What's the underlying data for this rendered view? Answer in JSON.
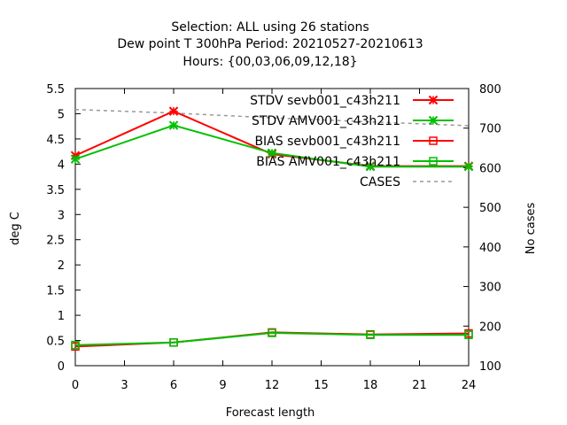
{
  "title_lines": [
    "Selection: ALL using    26 stations",
    "Dew point T 300hPa   Period: 20210527-20210613",
    "Hours: {00,03,06,09,12,18}"
  ],
  "chart_data": {
    "type": "line",
    "xlabel": "Forecast length",
    "ylabel": "deg C",
    "y2label": "No cases",
    "xlim": [
      0,
      24
    ],
    "ylim": [
      0,
      5.5
    ],
    "y2lim": [
      100,
      800
    ],
    "xticks": [
      "0",
      "3",
      "6",
      "9",
      "12",
      "15",
      "18",
      "21",
      "24"
    ],
    "yticks": [
      "0",
      "0.5",
      "1",
      "1.5",
      "2",
      "2.5",
      "3",
      "3.5",
      "4",
      "4.5",
      "5",
      "5.5"
    ],
    "y2ticks": [
      "100",
      "200",
      "300",
      "400",
      "500",
      "600",
      "700",
      "800"
    ],
    "legend_position": "top-right",
    "series": [
      {
        "name": "STDV sevb001_c43h211",
        "axis": "y",
        "color": "#ff0000",
        "marker": "cross",
        "x": [
          0,
          6,
          12,
          18,
          24
        ],
        "y": [
          4.17,
          5.05,
          4.2,
          3.96,
          3.96
        ]
      },
      {
        "name": "STDV AMV001_c43h211",
        "axis": "y",
        "color": "#00c000",
        "marker": "cross",
        "x": [
          0,
          6,
          12,
          18,
          24
        ],
        "y": [
          4.1,
          4.77,
          4.22,
          3.95,
          3.95
        ]
      },
      {
        "name": "BIAS sevb001_c43h211",
        "axis": "y",
        "color": "#ff0000",
        "marker": "square",
        "x": [
          0,
          6,
          12,
          18,
          24
        ],
        "y": [
          0.38,
          0.46,
          0.66,
          0.62,
          0.64
        ]
      },
      {
        "name": "BIAS AMV001_c43h211",
        "axis": "y",
        "color": "#00c000",
        "marker": "square",
        "x": [
          0,
          6,
          12,
          18,
          24
        ],
        "y": [
          0.41,
          0.46,
          0.65,
          0.61,
          0.61
        ]
      },
      {
        "name": "CASES",
        "axis": "y2",
        "color": "#999999",
        "marker": "none",
        "dashed": true,
        "x": [
          0,
          6,
          12,
          18,
          24
        ],
        "y": [
          747,
          738,
          726,
          716,
          706
        ]
      }
    ]
  }
}
